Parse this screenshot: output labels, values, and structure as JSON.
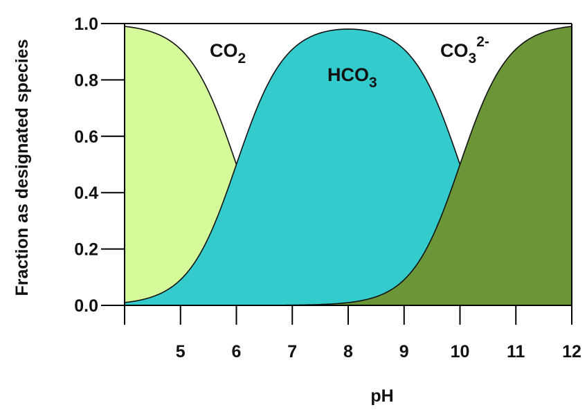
{
  "chart_data": {
    "type": "area",
    "xlabel": "pH",
    "ylabel": "Fraction as designated species",
    "xlim": [
      4,
      12
    ],
    "ylim": [
      0,
      1
    ],
    "x_ticks": [
      4,
      5,
      6,
      7,
      8,
      9,
      10,
      11,
      12
    ],
    "x_tick_labels": [
      "",
      "5",
      "6",
      "7",
      "8",
      "9",
      "10",
      "11",
      "12"
    ],
    "y_ticks": [
      0,
      0.2,
      0.4,
      0.6,
      0.8,
      1.0
    ],
    "y_tick_labels": [
      "0.0",
      "0.2",
      "0.4",
      "0.6",
      "0.8",
      "1.0"
    ],
    "pKa1": 6.0,
    "pKa2": 10.0,
    "grid": false,
    "x": [
      4,
      5,
      6,
      7,
      8,
      9,
      10,
      11,
      12
    ],
    "series": [
      {
        "name": "CO2",
        "label_main": "CO",
        "label_sub": "2",
        "label_sup": "",
        "color": "#d4fa9a",
        "values": [
          0.99,
          0.909,
          0.5,
          0.091,
          0.01,
          0.001,
          0.0,
          0.0,
          0.0
        ]
      },
      {
        "name": "HCO3",
        "label_main": "HCO",
        "label_sub": "3",
        "label_sup": "",
        "color": "#33cbcb",
        "values": [
          0.01,
          0.091,
          0.5,
          0.908,
          0.98,
          0.908,
          0.5,
          0.091,
          0.01
        ]
      },
      {
        "name": "CO3 2-",
        "label_main": "CO",
        "label_sub": "3",
        "label_sup": "2-",
        "color": "#6a9638",
        "values": [
          0.0,
          0.0,
          0.0,
          0.001,
          0.01,
          0.091,
          0.5,
          0.909,
          0.99
        ]
      }
    ]
  }
}
